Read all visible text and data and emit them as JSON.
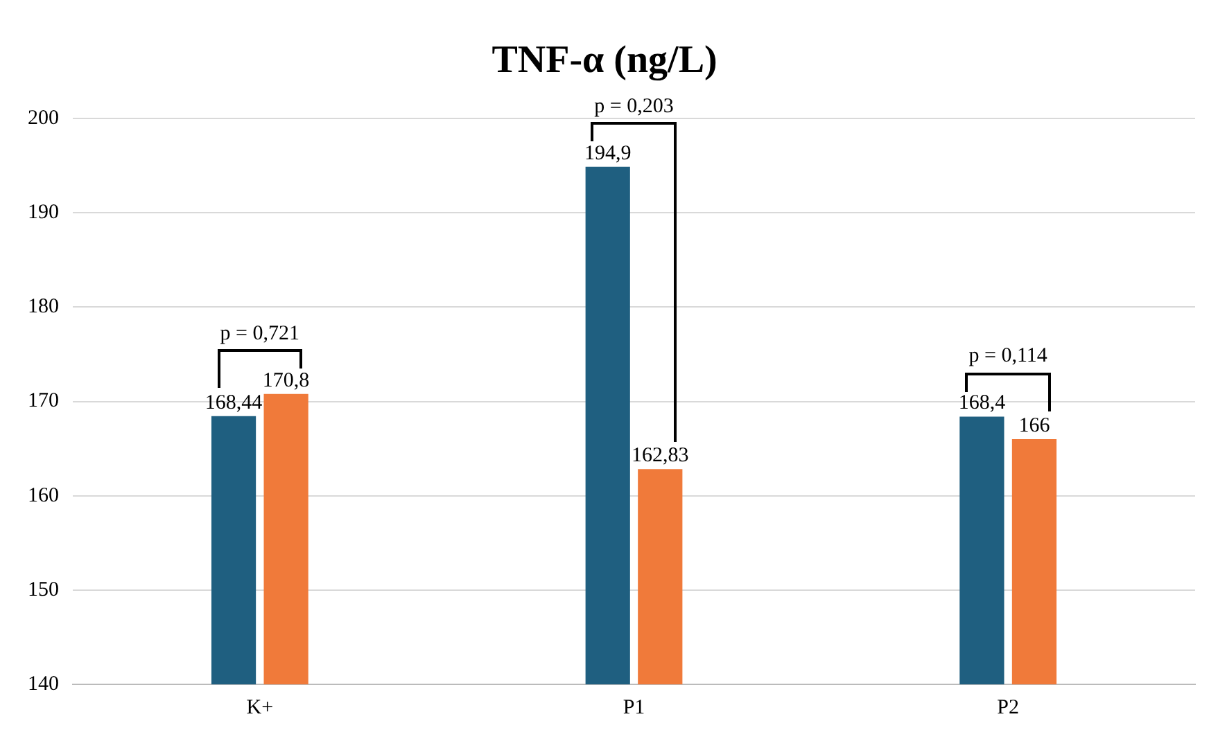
{
  "chart_data": {
    "type": "bar",
    "title": "TNF-α (ng/L)",
    "categories": [
      "K+",
      "P1",
      "P2"
    ],
    "series": [
      {
        "color": "#1f5f80",
        "values": [
          168.44,
          194.9,
          168.4
        ],
        "value_labels": [
          "168,44",
          "194,9",
          "168,4"
        ]
      },
      {
        "color": "#f07a3a",
        "values": [
          170.8,
          162.83,
          166
        ],
        "value_labels": [
          "170,8",
          "162,83",
          "166"
        ]
      }
    ],
    "ylim": [
      140,
      200
    ],
    "yticks": [
      140,
      150,
      160,
      170,
      180,
      190,
      200
    ],
    "grid": "y",
    "legend": false,
    "annotations": [
      "p = 0,721",
      "p = 0,203",
      "p = 0,114"
    ]
  }
}
